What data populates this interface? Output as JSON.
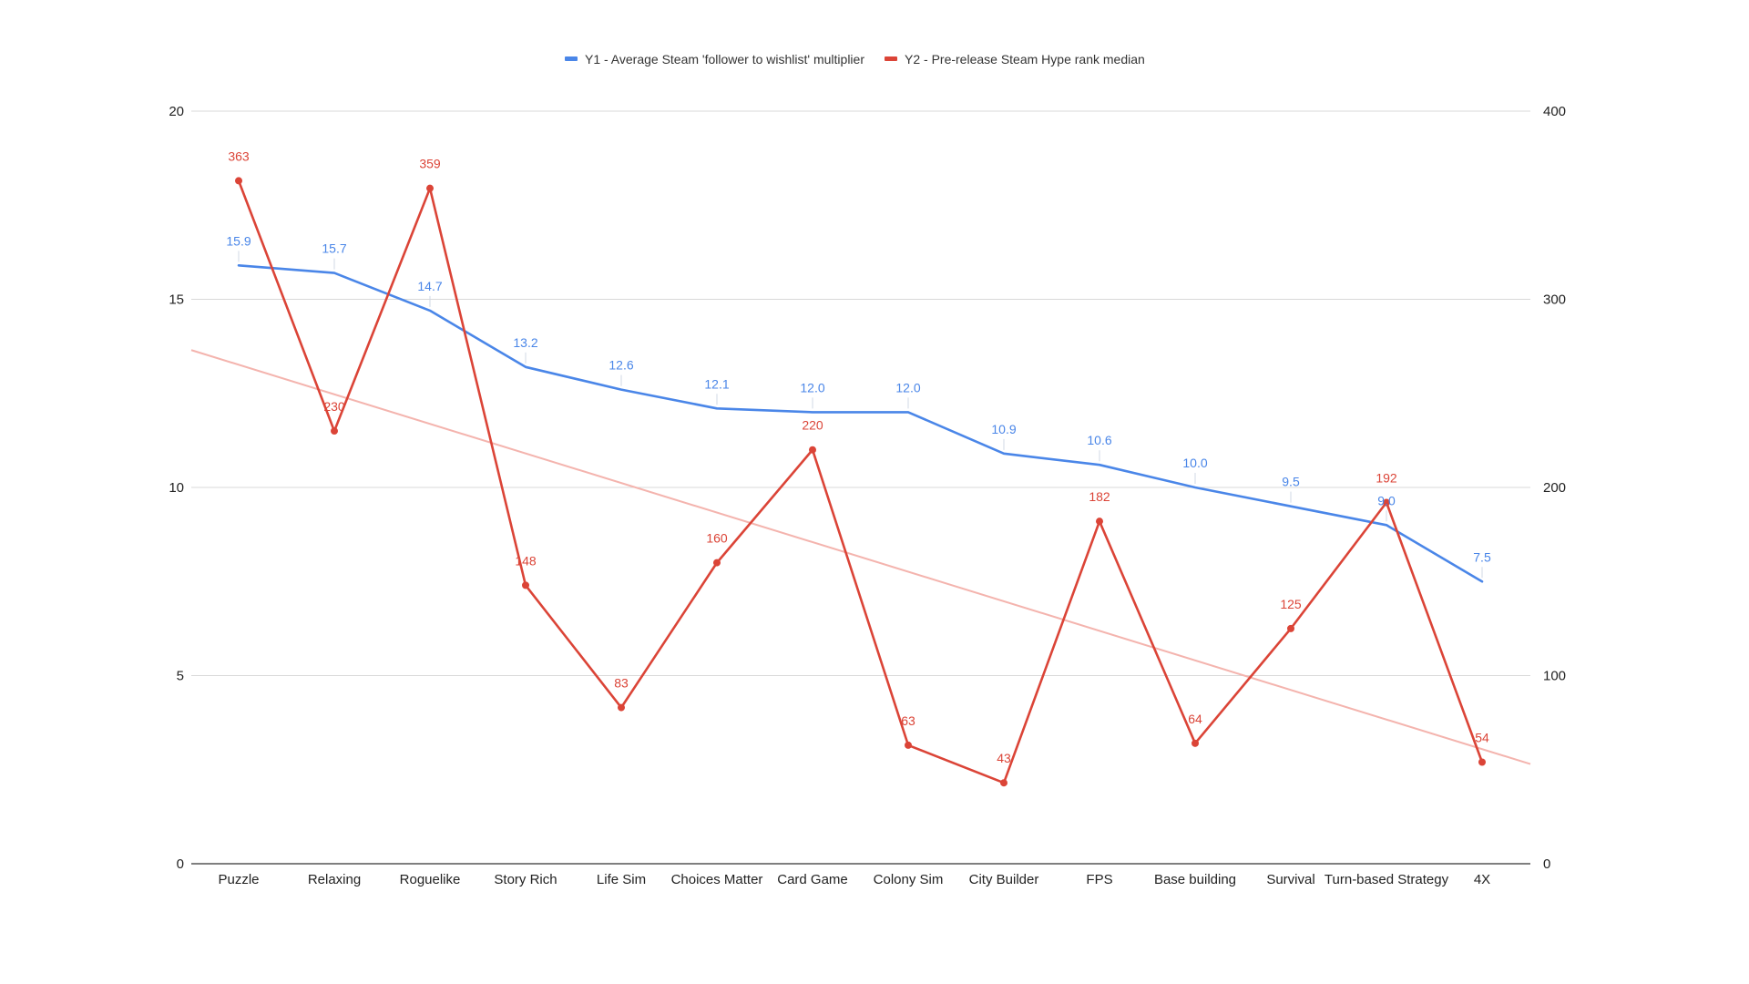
{
  "chart_data": {
    "type": "line",
    "title": "",
    "xlabel": "",
    "ylabel": "",
    "categories": [
      "Puzzle",
      "Relaxing",
      "Roguelike",
      "Story Rich",
      "Life Sim",
      "Choices Matter",
      "Card Game",
      "Colony Sim",
      "City Builder",
      "FPS",
      "Base building",
      "Survival",
      "Turn-based Strategy",
      "4X"
    ],
    "y_axis_left": {
      "min": 0,
      "max": 20,
      "ticks": [
        "0",
        "5",
        "10",
        "15",
        "20"
      ]
    },
    "y_axis_right": {
      "min": 0,
      "max": 400,
      "ticks": [
        "0",
        "100",
        "200",
        "300",
        "400"
      ]
    },
    "grid": true,
    "legend_position": "top-center",
    "series": [
      {
        "name": "Y1 - Average Steam 'follower to wishlist' multiplier",
        "axis": "left",
        "color": "#4a86e8",
        "markers": false,
        "values": [
          15.9,
          15.7,
          14.7,
          13.2,
          12.6,
          12.1,
          12.0,
          12.0,
          10.9,
          10.6,
          10.0,
          9.5,
          9.0,
          7.5
        ],
        "labels": [
          "15.9",
          "15.7",
          "14.7",
          "13.2",
          "12.6",
          "12.1",
          "12.0",
          "12.0",
          "10.9",
          "10.6",
          "10.0",
          "9.5",
          "9.0",
          "7.5"
        ]
      },
      {
        "name": "Y2 - Pre-release Steam Hype rank median",
        "axis": "right",
        "color": "#db4437",
        "markers": true,
        "values": [
          363,
          230,
          359,
          148,
          83,
          160,
          220,
          63,
          43,
          182,
          64,
          125,
          192,
          54
        ],
        "labels": [
          "363",
          "230",
          "359",
          "148",
          "83",
          "160",
          "220",
          "63",
          "43",
          "182",
          "64",
          "125",
          "192",
          "54"
        ]
      }
    ],
    "trendline": {
      "series": "Y2 - Pre-release Steam Hype rank median",
      "type": "linear",
      "color": "#f4b4ae",
      "start_value": 273,
      "end_value": 53
    }
  }
}
